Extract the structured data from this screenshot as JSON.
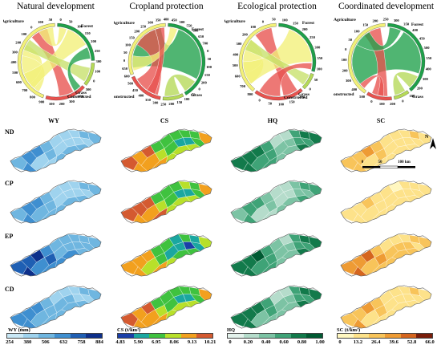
{
  "chords": [
    {
      "title": "Natural development",
      "labels": {
        "agriculture": "Agriculture",
        "forest": "Forest",
        "grass": "Grass",
        "constructed": "Constructed"
      },
      "ticks": [
        "900",
        "800",
        "700",
        "600",
        "500",
        "400",
        "300",
        "200",
        "100",
        "0",
        "100",
        "50",
        "0",
        "50",
        "100",
        "150",
        "200",
        "250",
        "300",
        "100",
        "0",
        "500",
        "400",
        "300",
        "200",
        "100"
      ]
    },
    {
      "title": "Cropland protection",
      "labels": {
        "agriculture": "Agriculture",
        "forest": "Forest",
        "grass": "Grass",
        "constructed": "Constructed"
      },
      "ticks": [
        "600",
        "650",
        "0",
        "50",
        "100",
        "150",
        "200",
        "250",
        "300",
        "350",
        "400",
        "450",
        "500",
        "550",
        "600",
        "650",
        "700",
        "0",
        "50",
        "100",
        "150",
        "200",
        "0",
        "50",
        "100",
        "150",
        "200",
        "250",
        "300",
        "350",
        "400",
        "450",
        "500"
      ]
    },
    {
      "title": "Ecological protection",
      "labels": {
        "agriculture": "Agriculture",
        "forest": "Forest",
        "grass": "Grass",
        "constructed": "Constructed"
      },
      "ticks": [
        "800",
        "700",
        "600",
        "500",
        "400",
        "300",
        "200",
        "100",
        "0",
        "50",
        "100",
        "150",
        "200",
        "250",
        "300",
        "350",
        "100",
        "50",
        "0",
        "200",
        "150",
        "100",
        "50",
        "0"
      ]
    },
    {
      "title": "Coordinated development",
      "labels": {
        "agriculture": "Agriculture",
        "forest": "Forest",
        "grass": "Grass",
        "constructed": "Constructed"
      },
      "ticks": [
        "500",
        "400",
        "300",
        "200",
        "100",
        "0",
        "50",
        "100",
        "150",
        "200",
        "250",
        "300",
        "350",
        "400",
        "450",
        "500",
        "550",
        "400",
        "300",
        "200",
        "100",
        "0",
        "200",
        "100",
        "0"
      ]
    }
  ],
  "columns": [
    "WY",
    "CS",
    "HQ",
    "SC"
  ],
  "rows": [
    "ND",
    "CP",
    "EP",
    "CD"
  ],
  "legends": [
    {
      "title": "WY (mm)",
      "ticks": [
        "254",
        "380",
        "506",
        "632",
        "758",
        "884"
      ],
      "colors": [
        "#c9e8f6",
        "#9fd3ee",
        "#6fb6e0",
        "#3f8fd0",
        "#1f5fb3",
        "#0d2f8a"
      ]
    },
    {
      "title": "CS (t/km²)",
      "ticks": [
        "4.83",
        "5.90",
        "6.95",
        "8.06",
        "9.13",
        "10.21"
      ],
      "colors": [
        "#1a3fa8",
        "#1aa7a0",
        "#3fc23f",
        "#b8e02a",
        "#f2a01e",
        "#d45a30"
      ]
    },
    {
      "title": "HQ",
      "ticks": [
        "0",
        "0.20",
        "0.40",
        "0.60",
        "0.80",
        "1.00"
      ],
      "colors": [
        "#e4f2ec",
        "#b5dccb",
        "#7cc3a4",
        "#3fa377",
        "#127a4b",
        "#005a32"
      ]
    },
    {
      "title": "SC (t/km²)",
      "ticks": [
        "0",
        "13.2",
        "26.4",
        "39.6",
        "52.8",
        "66.0"
      ],
      "colors": [
        "#fff7c0",
        "#fde28a",
        "#f8c45a",
        "#ee9b34",
        "#d5651e",
        "#7a1d0a"
      ]
    }
  ],
  "scalebar": {
    "ticks": [
      "0",
      "50",
      "100 km"
    ]
  },
  "north": {
    "label": "N"
  },
  "colors": {
    "agriculture": "#f2f079",
    "forest": "#1fa04a",
    "grass": "#b5d957",
    "constructed": "#e8524e"
  },
  "map_levels": {
    "WY": [
      [
        0.55,
        0.35,
        0.25,
        0.3
      ],
      [
        0.55,
        0.4,
        0.25,
        0.3
      ],
      [
        0.9,
        0.65,
        0.45,
        0.4
      ],
      [
        0.6,
        0.4,
        0.3,
        0.3
      ]
    ],
    "CS": [
      [
        0.8,
        0.3,
        0.5,
        0.8
      ],
      [
        0.85,
        0.35,
        0.5,
        0.8
      ],
      [
        0.7,
        0.25,
        0.45,
        0.75
      ],
      [
        0.8,
        0.3,
        0.5,
        0.8
      ]
    ],
    "HQ": [
      [
        0.8,
        0.6,
        0.3,
        0.7
      ],
      [
        0.55,
        0.35,
        0.25,
        0.5
      ],
      [
        0.85,
        0.6,
        0.35,
        0.7
      ],
      [
        0.8,
        0.55,
        0.3,
        0.7
      ]
    ],
    "SC": [
      [
        0.45,
        0.3,
        0.2,
        0.25
      ],
      [
        0.25,
        0.2,
        0.15,
        0.2
      ],
      [
        0.7,
        0.45,
        0.3,
        0.35
      ],
      [
        0.5,
        0.3,
        0.2,
        0.25
      ]
    ]
  }
}
